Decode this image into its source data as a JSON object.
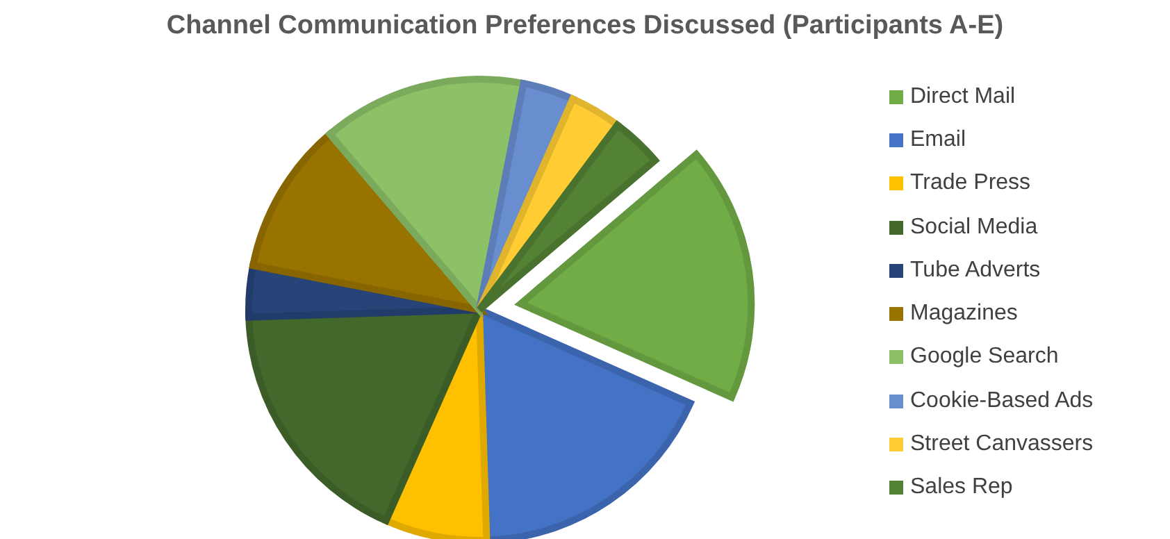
{
  "chart_data": {
    "type": "pie",
    "title": "Channel Communication Preferences Discussed (Participants A-E)",
    "categories": [
      "Direct Mail",
      "Email",
      "Trade Press",
      "Social Media",
      "Tube Adverts",
      "Magazines",
      "Google Search",
      "Cookie-Based Ads",
      "Street Canvassers",
      "Sales Rep"
    ],
    "values": [
      17.86,
      17.86,
      7.14,
      17.86,
      3.57,
      10.71,
      14.29,
      3.57,
      3.57,
      3.57
    ],
    "colors": [
      "#70ad47",
      "#4472c4",
      "#ffc000",
      "#43682b",
      "#264478",
      "#997300",
      "#8cc168",
      "#698ed0",
      "#ffcd33",
      "#548235"
    ],
    "legend": "right"
  }
}
